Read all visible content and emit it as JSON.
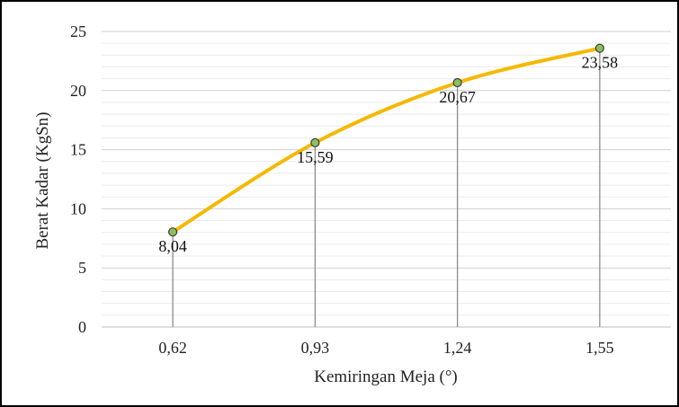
{
  "chart_data": {
    "type": "line",
    "title": "",
    "xlabel": "Kemiringan Meja (°)",
    "ylabel": "Berat Kadar (KgSn)",
    "categories": [
      "0,62",
      "0,93",
      "1,24",
      "1,55"
    ],
    "series": [
      {
        "values": [
          8.04,
          15.59,
          20.67,
          23.58
        ],
        "data_labels": [
          "8,04",
          "15,59",
          "20,67",
          "23,58"
        ]
      }
    ],
    "ylim": [
      0,
      25
    ],
    "yticks": [
      0,
      5,
      10,
      15,
      20,
      25
    ],
    "grid": "horizontal major and minor",
    "drop_lines": true,
    "marker": "circle",
    "colors": {
      "line": "#F5B800",
      "marker_fill": "#8DBF5A",
      "marker_stroke": "#3A3A3A",
      "drop_line": "#8C8C8C",
      "grid_major": "#D0D0D0",
      "grid_minor": "#EBEBEB",
      "axis": "#BFBFBF"
    }
  }
}
